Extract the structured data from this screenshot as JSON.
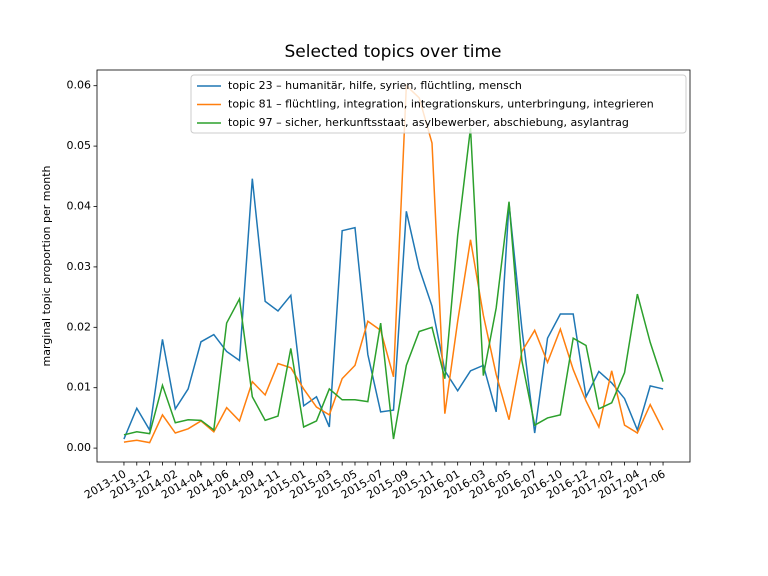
{
  "chart_data": {
    "type": "line",
    "title": "Selected topics over time",
    "ylabel": "marginal topic proportion per month",
    "categories": [
      "2013-10",
      null,
      "2013-12",
      null,
      "2014-02",
      null,
      "2014-04",
      null,
      "2014-06",
      null,
      "2014-09",
      null,
      "2014-11",
      null,
      "2015-01",
      null,
      "2015-03",
      null,
      "2015-05",
      null,
      "2015-07",
      null,
      "2015-09",
      null,
      "2015-11",
      null,
      "2016-01",
      null,
      "2016-03",
      null,
      "2016-05",
      null,
      "2016-07",
      null,
      "2016-10",
      null,
      "2016-12",
      null,
      "2017-02",
      null,
      "2017-04",
      null,
      "2017-06"
    ],
    "series": [
      {
        "name": "topic 23 – humanitär, hilfe, syrien, flüchtling, mensch",
        "color": "#1f77b4",
        "values": [
          0.0015,
          0.0066,
          0.003,
          0.018,
          0.0065,
          0.0098,
          0.0176,
          0.0188,
          0.016,
          0.0145,
          0.0446,
          0.0243,
          0.0227,
          0.0253,
          0.007,
          0.0085,
          0.0035,
          0.036,
          0.0365,
          0.0155,
          0.006,
          0.0063,
          0.0392,
          0.0298,
          0.0235,
          0.0128,
          0.0095,
          0.0128,
          0.0137,
          0.006,
          0.0405,
          0.0198,
          0.0025,
          0.0182,
          0.0222,
          0.0222,
          0.0085,
          0.0127,
          0.0108,
          0.0082,
          0.003,
          0.0103,
          0.0098
        ]
      },
      {
        "name": "topic 81 – flüchtling, integration, integrationskurs, unterbringung, integrieren",
        "color": "#ff7f0e",
        "values": [
          0.001,
          0.0013,
          0.0009,
          0.0055,
          0.0025,
          0.0032,
          0.0045,
          0.0027,
          0.0067,
          0.0045,
          0.011,
          0.0088,
          0.014,
          0.0133,
          0.0098,
          0.0068,
          0.0055,
          0.0115,
          0.0137,
          0.021,
          0.0195,
          0.0118,
          0.06,
          0.058,
          0.0505,
          0.0057,
          0.021,
          0.0345,
          0.022,
          0.0122,
          0.0047,
          0.016,
          0.0195,
          0.0142,
          0.0197,
          0.013,
          0.0078,
          0.0035,
          0.0128,
          0.0038,
          0.0025,
          0.0072,
          0.003
        ]
      },
      {
        "name": "topic 97 – sicher, herkunftsstaat, asylbewerber, abschiebung, asylantrag",
        "color": "#2ca02c",
        "values": [
          0.0022,
          0.0027,
          0.0024,
          0.0104,
          0.0042,
          0.0047,
          0.0046,
          0.003,
          0.0207,
          0.0247,
          0.0085,
          0.0046,
          0.0053,
          0.0165,
          0.0035,
          0.0045,
          0.0098,
          0.008,
          0.008,
          0.0077,
          0.0207,
          0.0015,
          0.0137,
          0.0193,
          0.02,
          0.0115,
          0.0352,
          0.053,
          0.012,
          0.0232,
          0.0408,
          0.0145,
          0.0038,
          0.005,
          0.0055,
          0.0182,
          0.017,
          0.0065,
          0.0075,
          0.0125,
          0.0255,
          0.0175,
          0.011
        ]
      }
    ],
    "ylim": [
      -0.0023,
      0.0626
    ],
    "yticks": [
      {
        "value": 0,
        "label": "0.00"
      },
      {
        "value": 0.01,
        "label": "0.01"
      },
      {
        "value": 0.02,
        "label": "0.02"
      },
      {
        "value": 0.03,
        "label": "0.03"
      },
      {
        "value": 0.04,
        "label": "0.04"
      },
      {
        "value": 0.05,
        "label": "0.05"
      },
      {
        "value": 0.06,
        "label": "0.06"
      }
    ],
    "legend": "upper center"
  }
}
